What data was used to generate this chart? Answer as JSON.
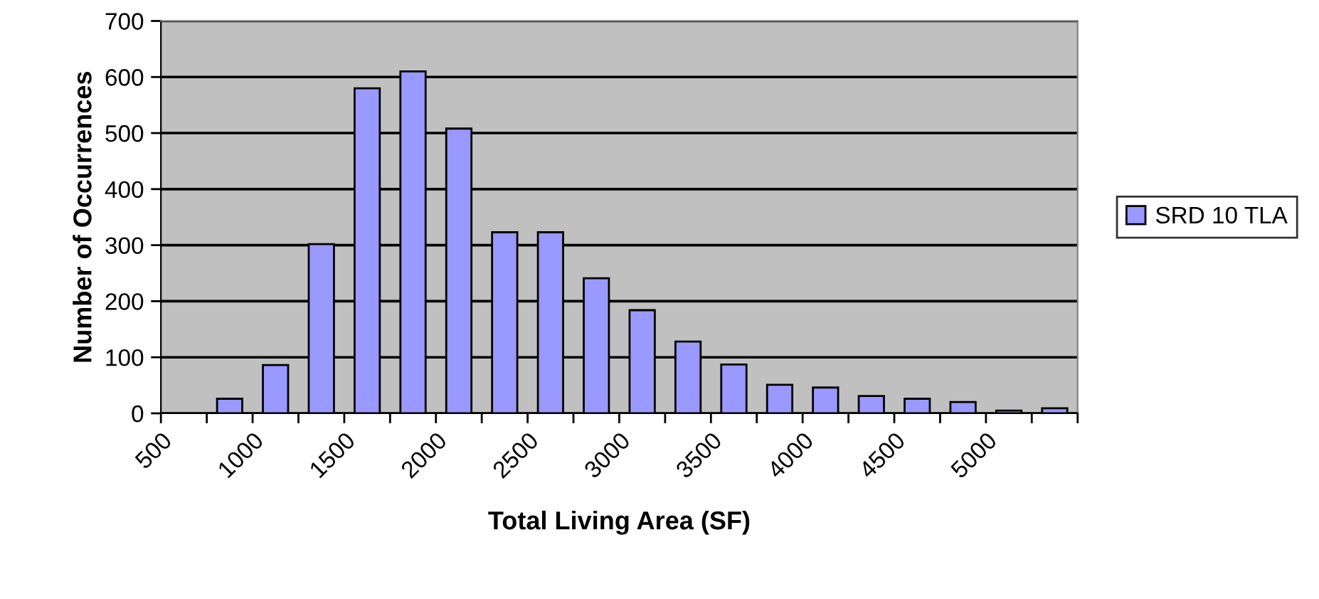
{
  "chart_data": {
    "type": "histogram",
    "xlabel": "Total Living Area (SF)",
    "ylabel": "Number of Occurrences",
    "bins": [
      500,
      750,
      1000,
      1250,
      1500,
      1750,
      2000,
      2250,
      2500,
      2750,
      3000,
      3250,
      3500,
      3750,
      4000,
      4250,
      4500,
      4750,
      5000,
      5250,
      5500
    ],
    "series": [
      {
        "name": "SRD 10 TLA",
        "color": "#9999ff",
        "values": [
          0,
          26,
          86,
          302,
          580,
          610,
          508,
          323,
          323,
          241,
          184,
          128,
          87,
          51,
          46,
          31,
          26,
          20,
          5,
          9
        ]
      }
    ],
    "xlim": [
      500,
      5500
    ],
    "xticks": [
      500,
      {
        "value": 750,
        "label": null
      },
      1000,
      {
        "value": 1250,
        "label": null
      },
      1500,
      {
        "value": 1750,
        "label": null
      },
      2000,
      {
        "value": 2250,
        "label": null
      },
      2500,
      {
        "value": 2750,
        "label": null
      },
      3000,
      {
        "value": 3250,
        "label": null
      },
      3500,
      {
        "value": 3750,
        "label": null
      },
      4000,
      {
        "value": 4250,
        "label": null
      },
      4500,
      {
        "value": 4750,
        "label": null
      },
      5000,
      {
        "value": 5250,
        "label": null
      },
      {
        "value": 5500,
        "label": null
      }
    ],
    "ylim": [
      0,
      700
    ],
    "yticks": [
      0,
      100,
      200,
      300,
      400,
      500,
      600,
      700
    ],
    "grid": "y",
    "legend": "right"
  }
}
